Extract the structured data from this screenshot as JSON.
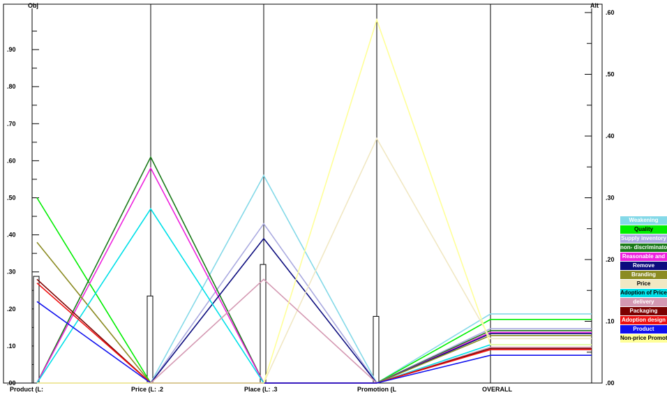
{
  "chart_data": {
    "type": "line",
    "title": "",
    "left_axis": {
      "label": "Obj",
      "ylim": [
        0,
        1.0
      ],
      "ticks": [
        ".00",
        ".10",
        ".20",
        ".30",
        ".40",
        ".50",
        ".60",
        ".70",
        ".80",
        ".90"
      ]
    },
    "right_axis": {
      "label": "Alt",
      "ylim": [
        0,
        0.6
      ],
      "ticks": [
        ".00",
        ".10",
        ".20",
        ".30",
        ".40",
        ".50",
        ".60"
      ]
    },
    "criteria": [
      {
        "label": "Product (L:",
        "weight": 0.288
      },
      {
        "label": "Price (L: .2",
        "weight": 0.235
      },
      {
        "label": "Place (L: .3",
        "weight": 0.32
      },
      {
        "label": "Promotion (L",
        "weight": 0.18
      }
    ],
    "overall_label": "OVERALL",
    "grid": false,
    "legend_placement": "right",
    "series": [
      {
        "name": "Weakening",
        "color": "#84d9e8",
        "text_color": "#ffffff",
        "values": [
          0.0,
          0.0,
          0.56,
          0.0
        ],
        "overall": 0.112
      },
      {
        "name": "Quality",
        "color": "#00ee00",
        "text_color": "#000000",
        "values": [
          0.5,
          0.0,
          0.0,
          0.0
        ],
        "overall": 0.103
      },
      {
        "name": "Supply inventory",
        "color": "#aaaae0",
        "text_color": "#ffffff",
        "values": [
          0.0,
          0.0,
          0.43,
          0.0
        ],
        "overall": 0.088
      },
      {
        "name": "non- discriminatory",
        "color": "#1a7a1a",
        "text_color": "#ffffff",
        "values": [
          0.0,
          0.61,
          0.0,
          0.0
        ],
        "overall": 0.085
      },
      {
        "name": "Reasonable and",
        "color": "#ee22dd",
        "text_color": "#ffffff",
        "values": [
          0.0,
          0.58,
          0.0,
          0.0
        ],
        "overall": 0.082
      },
      {
        "name": "Remove",
        "color": "#0c0c7e",
        "text_color": "#ffffff",
        "values": [
          0.0,
          0.0,
          0.39,
          0.0
        ],
        "overall": 0.08
      },
      {
        "name": "Branding",
        "color": "#8b8b22",
        "text_color": "#ffffff",
        "values": [
          0.38,
          0.0,
          0.0,
          0.0
        ],
        "overall": 0.077
      },
      {
        "name": "Price",
        "color": "#f1e8c3",
        "text_color": "#000000",
        "values": [
          0.0,
          0.0,
          0.0,
          0.66
        ],
        "overall": 0.072
      },
      {
        "name": "Adoption of Price",
        "color": "#00e0e8",
        "text_color": "#000000",
        "values": [
          0.0,
          0.47,
          0.0,
          0.0
        ],
        "overall": 0.062
      },
      {
        "name": "delivery",
        "color": "#d498b2",
        "text_color": "#ffffff",
        "values": [
          0.0,
          0.0,
          0.28,
          0.0
        ],
        "overall": 0.058
      },
      {
        "name": "Packaging",
        "color": "#7b0000",
        "text_color": "#ffffff",
        "values": [
          0.28,
          0.0,
          0.0,
          0.0
        ],
        "overall": 0.056
      },
      {
        "name": "Adoption design",
        "color": "#ee1111",
        "text_color": "#ffffff",
        "values": [
          0.27,
          0.0,
          0.0,
          0.0
        ],
        "overall": 0.054
      },
      {
        "name": "Product",
        "color": "#1111ee",
        "text_color": "#ffffff",
        "values": [
          0.22,
          0.0,
          0.0,
          0.0
        ],
        "overall": 0.045
      },
      {
        "name": "Non-price Promotion",
        "color": "#ffff99",
        "text_color": "#000000",
        "values": [
          0.0,
          0.0,
          0.0,
          0.98
        ],
        "overall": 0.062
      }
    ],
    "legend": {
      "items": [
        "Weakening",
        "Quality",
        "Supply inventory",
        "non- discriminatory",
        "Reasonable and",
        "Remove",
        "Branding",
        "Price",
        "Adoption of Price",
        "delivery",
        "Packaging",
        "Adoption design",
        "Product",
        "Non-price Promotion"
      ]
    }
  }
}
